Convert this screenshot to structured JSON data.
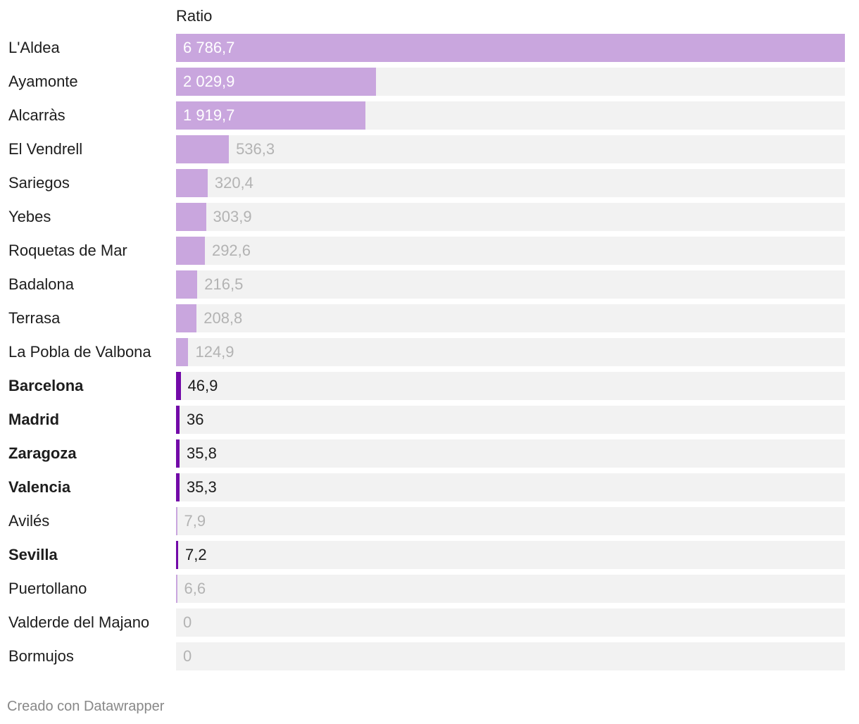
{
  "chart_data": {
    "type": "bar",
    "orientation": "horizontal",
    "column_header": "Ratio",
    "xlim": [
      0,
      6786.7
    ],
    "rows": [
      {
        "label": "L'Aldea",
        "value": 6786.7,
        "display": "6 786,7",
        "highlight": false
      },
      {
        "label": "Ayamonte",
        "value": 2029.9,
        "display": "2 029,9",
        "highlight": false
      },
      {
        "label": "Alcarràs",
        "value": 1919.7,
        "display": "1 919,7",
        "highlight": false
      },
      {
        "label": "El Vendrell",
        "value": 536.3,
        "display": "536,3",
        "highlight": false
      },
      {
        "label": "Sariegos",
        "value": 320.4,
        "display": "320,4",
        "highlight": false
      },
      {
        "label": "Yebes",
        "value": 303.9,
        "display": "303,9",
        "highlight": false
      },
      {
        "label": "Roquetas de Mar",
        "value": 292.6,
        "display": "292,6",
        "highlight": false
      },
      {
        "label": "Badalona",
        "value": 216.5,
        "display": "216,5",
        "highlight": false
      },
      {
        "label": "Terrasa",
        "value": 208.8,
        "display": "208,8",
        "highlight": false
      },
      {
        "label": "La Pobla de Valbona",
        "value": 124.9,
        "display": "124,9",
        "highlight": false
      },
      {
        "label": "Barcelona",
        "value": 46.9,
        "display": "46,9",
        "highlight": true
      },
      {
        "label": "Madrid",
        "value": 36,
        "display": "36",
        "highlight": true
      },
      {
        "label": "Zaragoza",
        "value": 35.8,
        "display": "35,8",
        "highlight": true
      },
      {
        "label": "Valencia",
        "value": 35.3,
        "display": "35,3",
        "highlight": true
      },
      {
        "label": "Avilés",
        "value": 7.9,
        "display": "7,9",
        "highlight": false
      },
      {
        "label": "Sevilla",
        "value": 7.2,
        "display": "7,2",
        "highlight": true
      },
      {
        "label": "Puertollano",
        "value": 6.6,
        "display": "6,6",
        "highlight": false
      },
      {
        "label": "Valderde del Majano",
        "value": 0,
        "display": "0",
        "highlight": false
      },
      {
        "label": "Bormujos",
        "value": 0,
        "display": "0",
        "highlight": false
      }
    ],
    "colors": {
      "bar": "#c9a6de",
      "bar_highlight": "#7209a8",
      "track": "#f2f2f2",
      "value_inside": "#ffffff",
      "value_muted": "#b3b3b3",
      "value_highlight": "#1d1d1d"
    }
  },
  "footer": {
    "credit": "Creado con Datawrapper"
  }
}
